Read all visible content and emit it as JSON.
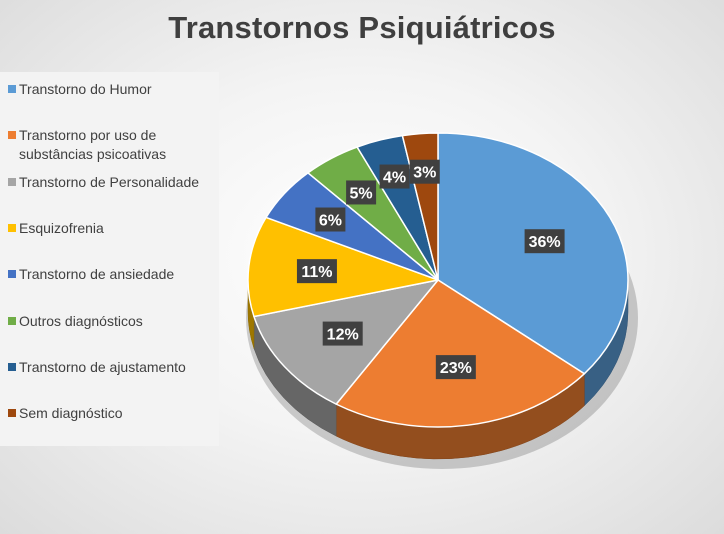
{
  "chart_data": {
    "type": "pie",
    "title": "Transtornos Psiquiátricos",
    "style": "3d-exploded-none",
    "legend_position": "left",
    "slices": [
      {
        "label": "Transtorno do Humor",
        "value": 36,
        "display": "36%",
        "color": "#5b9bd5"
      },
      {
        "label": "Transtorno por uso de\nsubstâncias psicoativas",
        "value": 23,
        "display": "23%",
        "color": "#ed7d31"
      },
      {
        "label": "Transtorno de Personalidade",
        "value": 12,
        "display": "12%",
        "color": "#a5a5a5"
      },
      {
        "label": " Esquizofrenia",
        "value": 11,
        "display": "11%",
        "color": "#ffc000"
      },
      {
        "label": "Transtorno de ansiedade",
        "value": 6,
        "display": "6%",
        "color": "#4472c4"
      },
      {
        "label": "Outros diagnósticos",
        "value": 5,
        "display": "5%",
        "color": "#70ad47"
      },
      {
        "label": " Transtorno de ajustamento",
        "value": 4,
        "display": "4%",
        "color": "#255e91"
      },
      {
        "label": "Sem diagnóstico",
        "value": 3,
        "display": "3%",
        "color": "#9e480e"
      }
    ]
  }
}
